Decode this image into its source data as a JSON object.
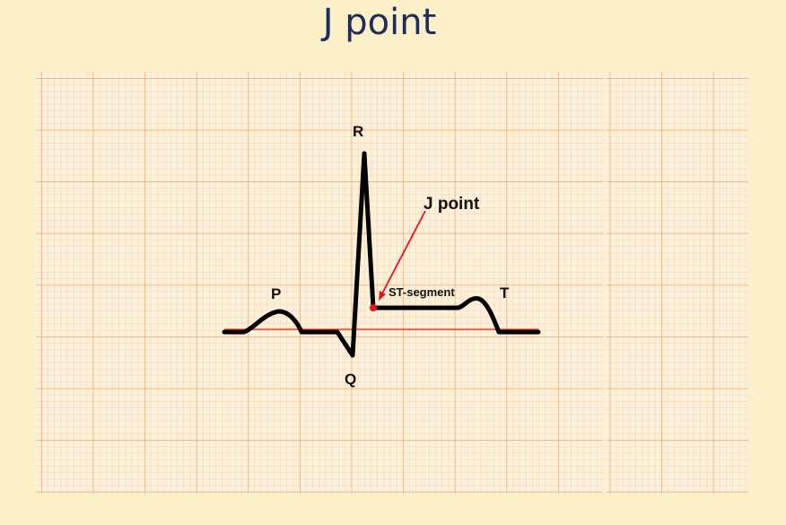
{
  "slide": {
    "title": "J point"
  },
  "diagram": {
    "labels": {
      "p": "P",
      "q": "Q",
      "r": "R",
      "t": "T",
      "j_point": "J point",
      "st_segment": "ST-segment"
    },
    "colors": {
      "background": "#fdefc8",
      "grid_minor": "#f6c89a",
      "grid_major": "#f0a262",
      "trace": "#000000",
      "baseline": "#e8402f",
      "annotation": "#e8101a"
    }
  }
}
